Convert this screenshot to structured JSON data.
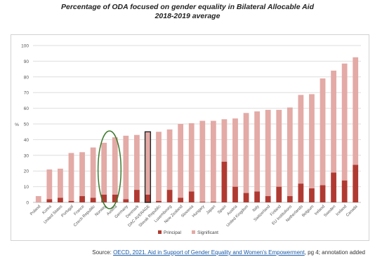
{
  "title": {
    "line1": "Percentage of ODA focused on gender equality in Bilateral Allocable Aid",
    "line2": "2018-2019 average"
  },
  "source": {
    "prefix": "Source: ",
    "link_text": "OECD, 2021. Aid in Support of Gender Equality and Women's Empowerment",
    "suffix": ", pg 4; annotation added"
  },
  "colors": {
    "principal": "#b03a32",
    "significant": "#e3aaa6",
    "highlight_ellipse": "#3c7a2c",
    "dac_outline": "#222222",
    "gridline": "#dedede"
  },
  "chart_data": {
    "type": "bar",
    "stacked": true,
    "ylabel": "%",
    "ylim": [
      0,
      100
    ],
    "yticks": [
      0,
      10,
      20,
      30,
      40,
      50,
      60,
      70,
      80,
      90,
      100
    ],
    "grid": true,
    "legend_position": "bottom-center",
    "categories": [
      "Poland",
      "Korea",
      "United States",
      "Portugal",
      "France",
      "Czech Republic",
      "Norway",
      "Austria",
      "Germany",
      "Denmark",
      "DAC AVERAGE",
      "Slovak Republic",
      "Luxembourg",
      "New Zealand",
      "Slovenia",
      "Hungary",
      "Japan",
      "Spain",
      "Austria",
      "United Kingdom",
      "Italy",
      "Switzerland",
      "Finland",
      "EU Institutions",
      "Netherlands",
      "Belgium",
      "Ireland",
      "Sweden",
      "Iceland",
      "Canada"
    ],
    "series": [
      {
        "name": "Principal",
        "color": "#b03a32",
        "values": [
          0,
          2,
          3,
          1,
          4,
          3,
          5,
          5,
          2,
          8,
          5,
          1,
          8,
          3,
          7,
          0.5,
          0.5,
          26,
          10,
          6,
          7,
          4,
          10,
          4,
          12,
          9,
          11,
          19,
          14,
          24
        ]
      },
      {
        "name": "Significant",
        "color": "#e3aaa6",
        "values": [
          4,
          19,
          18.5,
          30.5,
          28,
          32,
          33,
          36.5,
          40.5,
          35,
          40,
          44,
          38.5,
          47,
          43.5,
          51.5,
          51.5,
          27,
          43.5,
          51,
          51,
          55,
          49,
          56.5,
          56.5,
          60,
          68,
          65,
          74.5,
          68.5
        ]
      }
    ],
    "annotations": [
      {
        "type": "ellipse",
        "around": [
          "Norway",
          "Austria"
        ]
      },
      {
        "type": "outline",
        "around": "DAC AVERAGE"
      }
    ]
  }
}
